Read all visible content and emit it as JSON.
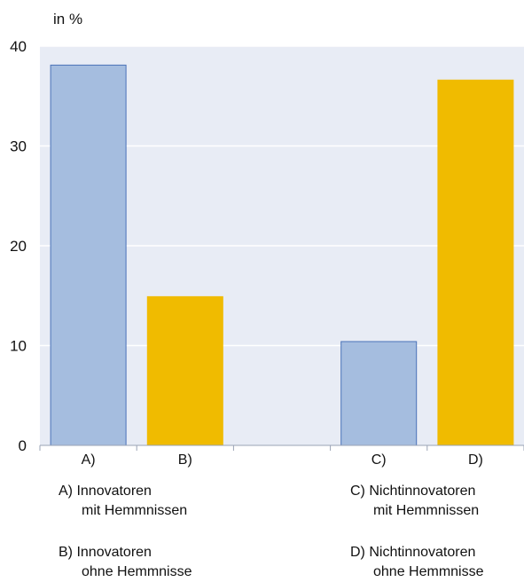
{
  "chart_data": {
    "type": "bar",
    "unit_label": "in %",
    "categories": [
      "A)",
      "B)",
      "",
      "C)",
      "D)"
    ],
    "values": [
      38.1,
      14.9,
      null,
      10.4,
      36.6
    ],
    "bar_colors": [
      "#a5bddf",
      "#f0bb00",
      null,
      "#a5bddf",
      "#f0bb00"
    ],
    "y_ticks": [
      0,
      10,
      20,
      30,
      40
    ],
    "ylim": [
      0,
      40
    ],
    "grid": true,
    "plot_background": "#e8ecf5"
  },
  "legend": {
    "a": {
      "line1": "A) Innovatoren",
      "line2": "mit Hemmnissen"
    },
    "b": {
      "line1": "B) Innovatoren",
      "line2": "ohne Hemmnisse"
    },
    "c": {
      "line1": "C) Nichtinnovatoren",
      "line2": "mit Hemmnissen"
    },
    "d": {
      "line1": "D) Nichtinnovatoren",
      "line2": "ohne Hemmnisse"
    }
  }
}
